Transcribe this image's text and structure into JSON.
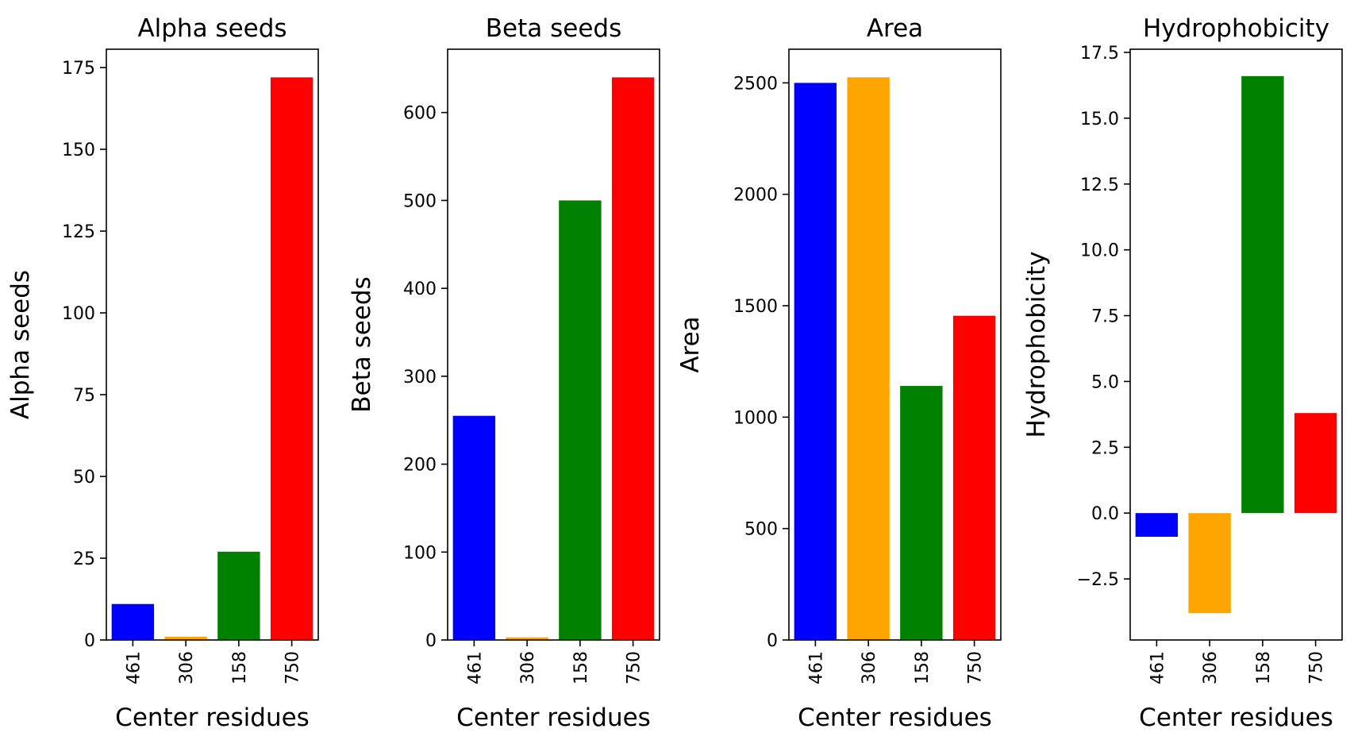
{
  "chart_data": [
    {
      "type": "bar",
      "title": "Alpha seeds",
      "xlabel": "Center residues",
      "ylabel": "Alpha seeds",
      "categories": [
        "461",
        "306",
        "158",
        "750"
      ],
      "values": [
        11,
        1,
        27,
        172
      ],
      "colors": [
        "#0000ff",
        "#ffa500",
        "#008000",
        "#ff0000"
      ],
      "ylim": [
        0,
        180.6
      ],
      "yticks": [
        0,
        25,
        50,
        75,
        100,
        125,
        150,
        175
      ],
      "ytick_labels": [
        "0",
        "25",
        "50",
        "75",
        "100",
        "125",
        "150",
        "175"
      ]
    },
    {
      "type": "bar",
      "title": "Beta seeds",
      "xlabel": "Center residues",
      "ylabel": "Beta seeds",
      "categories": [
        "461",
        "306",
        "158",
        "750"
      ],
      "values": [
        255,
        3,
        500,
        640
      ],
      "colors": [
        "#0000ff",
        "#ffa500",
        "#008000",
        "#ff0000"
      ],
      "ylim": [
        0,
        672
      ],
      "yticks": [
        0,
        100,
        200,
        300,
        400,
        500,
        600
      ],
      "ytick_labels": [
        "0",
        "100",
        "200",
        "300",
        "400",
        "500",
        "600"
      ]
    },
    {
      "type": "bar",
      "title": "Area",
      "xlabel": "Center residues",
      "ylabel": "Area",
      "categories": [
        "461",
        "306",
        "158",
        "750"
      ],
      "values": [
        2500,
        2525,
        1140,
        1455
      ],
      "colors": [
        "#0000ff",
        "#ffa500",
        "#008000",
        "#ff0000"
      ],
      "ylim": [
        0,
        2651
      ],
      "yticks": [
        0,
        500,
        1000,
        1500,
        2000,
        2500
      ],
      "ytick_labels": [
        "0",
        "500",
        "1000",
        "1500",
        "2000",
        "2500"
      ]
    },
    {
      "type": "bar",
      "title": "Hydrophobicity",
      "xlabel": "Center residues",
      "ylabel": "Hydrophobicity",
      "categories": [
        "461",
        "306",
        "158",
        "750"
      ],
      "values": [
        -0.9,
        -3.8,
        16.6,
        3.8
      ],
      "colors": [
        "#0000ff",
        "#ffa500",
        "#008000",
        "#ff0000"
      ],
      "ylim": [
        -4.82,
        17.62
      ],
      "yticks": [
        -2.5,
        0,
        2.5,
        5,
        7.5,
        10,
        12.5,
        15,
        17.5
      ],
      "ytick_labels": [
        "−2.5",
        "0.0",
        "2.5",
        "5.0",
        "7.5",
        "10.0",
        "12.5",
        "15.0",
        "17.5"
      ]
    }
  ]
}
